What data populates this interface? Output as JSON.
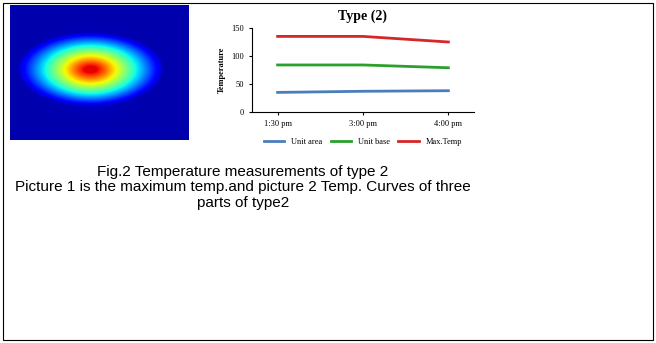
{
  "chart_data": {
    "type": "line",
    "title": "Type (2)",
    "y_label": "Temperature",
    "categories": [
      "1:30 pm",
      "3:00 pm",
      "4:00 pm"
    ],
    "series": [
      {
        "name": "Unit area",
        "color": "#4a7ebb",
        "values": [
          35,
          37,
          38
        ]
      },
      {
        "name": "Unit base",
        "color": "#2ca02c",
        "values": [
          84,
          84,
          79
        ]
      },
      {
        "name": "Max.Temp",
        "color": "#d62728",
        "values": [
          135,
          135,
          125
        ]
      }
    ],
    "ylim": [
      0,
      150
    ],
    "yticks": [
      0,
      50,
      100,
      150
    ],
    "grid": false,
    "legend": "bottom"
  },
  "caption": [
    "Fig.2 Temperature measurements of type 2",
    "Picture 1 is the maximum temp.and picture 2 Temp. Curves of three parts of type2"
  ]
}
